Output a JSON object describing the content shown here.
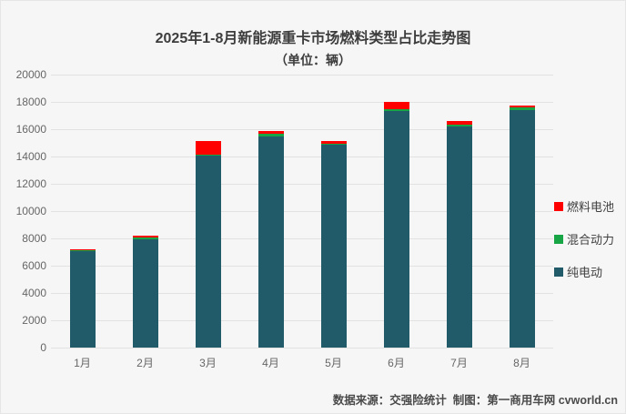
{
  "title": {
    "line1": "2025年1-8月新能源重卡市场燃料类型占比走势图",
    "line2": "（单位：辆）"
  },
  "footer": {
    "text": "数据来源：交强险统计  制图：第一商用车网 cvworld.cn"
  },
  "colors": {
    "pure_electric": "#215a69",
    "hybrid": "#17a546",
    "fuel_cell": "#ff0000",
    "background": "#f6f6f6",
    "gridline": "#e2e2e2"
  },
  "chart_data": {
    "type": "bar",
    "stacked": true,
    "title": "2025年1-8月新能源重卡市场燃料类型占比走势图",
    "subtitle": "（单位：辆）",
    "categories": [
      "1月",
      "2月",
      "3月",
      "4月",
      "5月",
      "6月",
      "7月",
      "8月"
    ],
    "series": [
      {
        "name": "纯电动",
        "key": "pure-electric",
        "color": "#215a69",
        "values": [
          7100,
          7950,
          14100,
          15450,
          14850,
          17350,
          16200,
          17400
        ]
      },
      {
        "name": "混合动力",
        "key": "hybrid",
        "color": "#17a546",
        "values": [
          30,
          120,
          60,
          200,
          100,
          130,
          130,
          180
        ]
      },
      {
        "name": "燃料电池",
        "key": "fuel-cell",
        "color": "#ff0000",
        "values": [
          100,
          130,
          950,
          200,
          170,
          500,
          280,
          150
        ]
      }
    ],
    "legend": [
      {
        "label": "燃料电池",
        "key": "fuel-cell",
        "color": "#ff0000"
      },
      {
        "label": "混合动力",
        "key": "hybrid",
        "color": "#17a546"
      },
      {
        "label": "纯电动",
        "key": "pure-electric",
        "color": "#215a69"
      }
    ],
    "xlabel": "",
    "ylabel": "",
    "ylim": [
      0,
      20000
    ],
    "ytick_step": 2000,
    "grid": true,
    "legend_position": "right"
  }
}
